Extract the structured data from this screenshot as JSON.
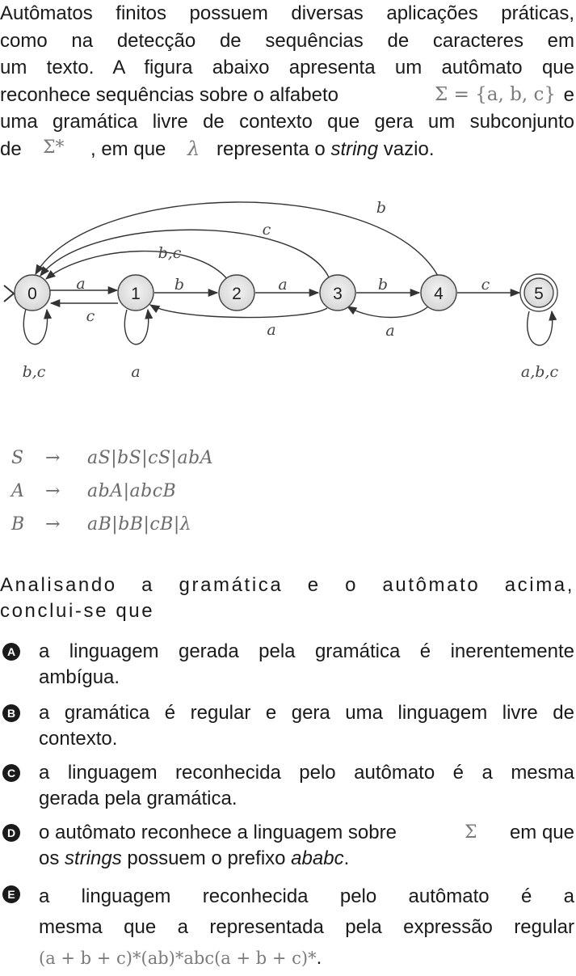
{
  "intro": {
    "l1": "Autômatos finitos possuem diversas aplicações práticas,",
    "l2": "como na detecção de sequências de caracteres em",
    "l3": "um texto. A figura abaixo apresenta um autômato que",
    "l4_a": "reconhece sequências sobre o alfabeto",
    "l4_math": "Σ = {a, b, c}",
    "l4_b": "e",
    "l5": "uma gramática livre de contexto que gera um subconjunto",
    "l6_a": "de",
    "l6_math": "Σ*",
    "l6_b": ", em que",
    "l6_lambda": "λ",
    "l6_c": "representa o",
    "l6_em": "string",
    "l6_d": "vazio."
  },
  "automaton": {
    "states": [
      "0",
      "1",
      "2",
      "3",
      "4",
      "5"
    ],
    "initial": "0",
    "accepting": [
      "5"
    ],
    "transitions": [
      {
        "from": "0",
        "to": "1",
        "label": "a"
      },
      {
        "from": "1",
        "to": "0",
        "label": "c"
      },
      {
        "from": "1",
        "to": "2",
        "label": "b"
      },
      {
        "from": "2",
        "to": "3",
        "label": "a"
      },
      {
        "from": "3",
        "to": "4",
        "label": "b"
      },
      {
        "from": "4",
        "to": "3",
        "label": "a"
      },
      {
        "from": "4",
        "to": "5",
        "label": "c"
      },
      {
        "from": "3",
        "to": "1",
        "label": "a"
      },
      {
        "from": "2",
        "to": "0",
        "label": "b,c"
      },
      {
        "from": "3",
        "to": "0",
        "label": "c"
      },
      {
        "from": "4",
        "to": "0",
        "label": "b"
      },
      {
        "from": "0",
        "to": "0",
        "label": "b,c"
      },
      {
        "from": "1",
        "to": "1",
        "label": "a"
      },
      {
        "from": "5",
        "to": "5",
        "label": "a,b,c"
      }
    ]
  },
  "grammar": [
    {
      "lhs": "S",
      "arrow": "→",
      "rhs": "aS|bS|cS|abA"
    },
    {
      "lhs": "A",
      "arrow": "→",
      "rhs": "abA|abcB"
    },
    {
      "lhs": "B",
      "arrow": "→",
      "rhs": "aB|bB|cB|λ"
    }
  ],
  "question": {
    "l1": "Analisando a gramática e o autômato acima,",
    "l2": "conclui-se que"
  },
  "options": [
    {
      "letter": "A",
      "l1": "a linguagem gerada pela gramática é inerentemente",
      "l2": "ambígua."
    },
    {
      "letter": "B",
      "l1": "a gramática é regular e gera uma linguagem livre de",
      "l2": "contexto."
    },
    {
      "letter": "C",
      "l1": "a linguagem reconhecida pelo autômato é a mesma",
      "l2": "gerada pela gramática."
    },
    {
      "letter": "D",
      "l1_a": "o autômato reconhece a linguagem sobre",
      "l1_math": "Σ",
      "l1_b": "em que",
      "l2_a": "os",
      "l2_em": "strings",
      "l2_b": "possuem o prefixo",
      "l2_em2": "ababc",
      "l2_c": "."
    },
    {
      "letter": "E",
      "l1": "a linguagem reconhecida pelo autômato é a",
      "l2": "mesma que a representada pela expressão regular",
      "l3_math": "(a + b + c)*(ab)*abc(a + b + c)*",
      "l3_end": "."
    }
  ]
}
